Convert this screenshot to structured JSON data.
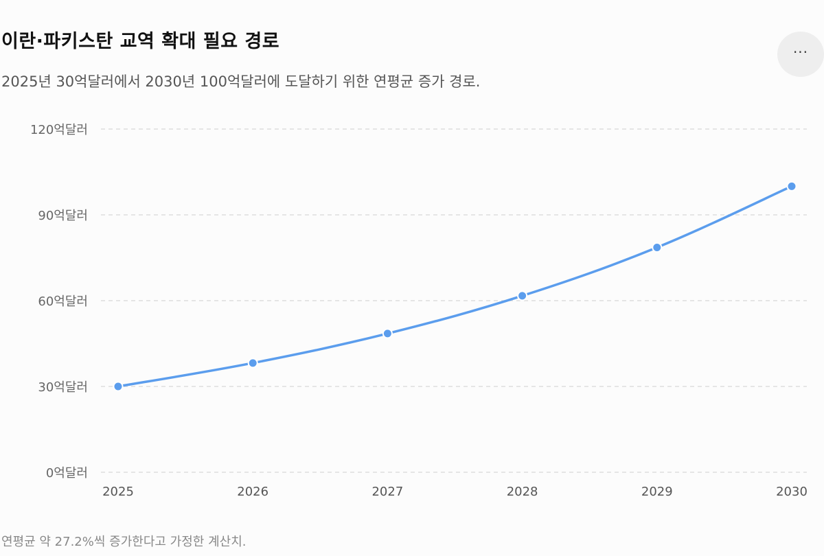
{
  "header": {
    "title": "이란·파키스탄 교역 확대 필요 경로",
    "subtitle": "2025년 30억달러에서 2030년 100억달러에 도달하기 위한 연평균 증가 경로.",
    "more_icon": "more-horizontal-icon",
    "more_label": "···"
  },
  "footer": {
    "note": "연평균 약 27.2%씩 증가한다고 가정한 계산치."
  },
  "chart_data": {
    "type": "line",
    "x": [
      2025,
      2026,
      2027,
      2028,
      2029,
      2030
    ],
    "series": [
      {
        "values": [
          30,
          38.2,
          48.5,
          61.7,
          78.6,
          100
        ]
      }
    ],
    "yticks": [
      0,
      30,
      60,
      90,
      120
    ],
    "ytick_labels": [
      "0억달러",
      "30억달러",
      "60억달러",
      "90억달러",
      "120억달러"
    ],
    "xtick_labels": [
      "2025",
      "2026",
      "2027",
      "2028",
      "2029",
      "2030"
    ],
    "ylim": [
      0,
      120
    ],
    "grid": "horizontal dashed",
    "line_color": "#5b9ded",
    "grid_color": "#dddddd"
  }
}
